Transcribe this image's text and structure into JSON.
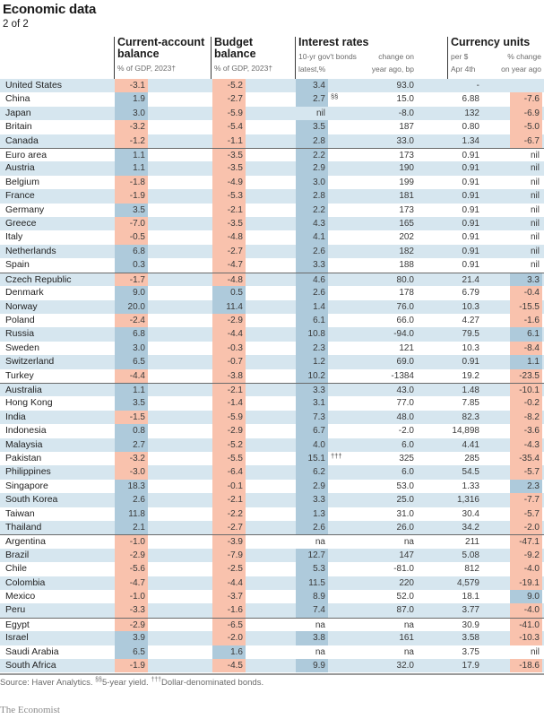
{
  "title": "Economic data",
  "subtitle": "2 of 2",
  "columns": {
    "current_account": {
      "title1": "Current-account",
      "title2": "balance",
      "sub": "% of GDP, 2023†"
    },
    "budget": {
      "title1": "Budget",
      "title2": "balance",
      "sub": "% of GDP, 2023†"
    },
    "interest": {
      "title": "Interest rates",
      "sub1a": "10-yr gov't bonds",
      "sub1b": "latest,%",
      "sub2a": "change on",
      "sub2b": "year ago, bp"
    },
    "currency": {
      "title": "Currency units",
      "sub1a": "per $",
      "sub1b": "Apr 4th",
      "sub2a": "% change",
      "sub2b": "on year ago"
    }
  },
  "colors": {
    "negative": "#f9c2ad",
    "positive": "#aecadb",
    "stripe": "#d6e6ef"
  },
  "rows": [
    {
      "country": "United States",
      "ca": "-3.1",
      "bb": "-5.2",
      "ir": "3.4",
      "fn": "",
      "irc": "93.0",
      "cu": "-",
      "pc": "",
      "sep": false
    },
    {
      "country": "China",
      "ca": "1.9",
      "bb": "-2.7",
      "ir": "2.7",
      "fn": "§§",
      "irc": "15.0",
      "cu": "6.88",
      "pc": "-7.6",
      "sep": false
    },
    {
      "country": "Japan",
      "ca": "3.0",
      "bb": "-5.9",
      "ir": "nil",
      "fn": "",
      "irc": "-8.0",
      "cu": "132",
      "pc": "-6.9",
      "sep": false
    },
    {
      "country": "Britain",
      "ca": "-3.2",
      "bb": "-5.4",
      "ir": "3.5",
      "fn": "",
      "irc": "187",
      "cu": "0.80",
      "pc": "-5.0",
      "sep": false
    },
    {
      "country": "Canada",
      "ca": "-1.2",
      "bb": "-1.1",
      "ir": "2.8",
      "fn": "",
      "irc": "33.0",
      "cu": "1.34",
      "pc": "-6.7",
      "sep": false
    },
    {
      "country": "Euro area",
      "ca": "1.1",
      "bb": "-3.5",
      "ir": "2.2",
      "fn": "",
      "irc": "173",
      "cu": "0.91",
      "pc": "nil",
      "sep": true
    },
    {
      "country": "Austria",
      "ca": "1.1",
      "bb": "-3.5",
      "ir": "2.9",
      "fn": "",
      "irc": "190",
      "cu": "0.91",
      "pc": "nil",
      "sep": false
    },
    {
      "country": "Belgium",
      "ca": "-1.8",
      "bb": "-4.9",
      "ir": "3.0",
      "fn": "",
      "irc": "199",
      "cu": "0.91",
      "pc": "nil",
      "sep": false
    },
    {
      "country": "France",
      "ca": "-1.9",
      "bb": "-5.3",
      "ir": "2.8",
      "fn": "",
      "irc": "181",
      "cu": "0.91",
      "pc": "nil",
      "sep": false
    },
    {
      "country": "Germany",
      "ca": "3.5",
      "bb": "-2.1",
      "ir": "2.2",
      "fn": "",
      "irc": "173",
      "cu": "0.91",
      "pc": "nil",
      "sep": false
    },
    {
      "country": "Greece",
      "ca": "-7.0",
      "bb": "-3.5",
      "ir": "4.3",
      "fn": "",
      "irc": "165",
      "cu": "0.91",
      "pc": "nil",
      "sep": false
    },
    {
      "country": "Italy",
      "ca": "-0.5",
      "bb": "-4.8",
      "ir": "4.1",
      "fn": "",
      "irc": "202",
      "cu": "0.91",
      "pc": "nil",
      "sep": false
    },
    {
      "country": "Netherlands",
      "ca": "6.8",
      "bb": "-2.7",
      "ir": "2.6",
      "fn": "",
      "irc": "182",
      "cu": "0.91",
      "pc": "nil",
      "sep": false
    },
    {
      "country": "Spain",
      "ca": "0.3",
      "bb": "-4.7",
      "ir": "3.3",
      "fn": "",
      "irc": "188",
      "cu": "0.91",
      "pc": "nil",
      "sep": false
    },
    {
      "country": "Czech Republic",
      "ca": "-1.7",
      "bb": "-4.8",
      "ir": "4.6",
      "fn": "",
      "irc": "80.0",
      "cu": "21.4",
      "pc": "3.3",
      "sep": true
    },
    {
      "country": "Denmark",
      "ca": "9.0",
      "bb": "0.5",
      "ir": "2.6",
      "fn": "",
      "irc": "178",
      "cu": "6.79",
      "pc": "-0.4",
      "sep": false
    },
    {
      "country": "Norway",
      "ca": "20.0",
      "bb": "11.4",
      "ir": "1.4",
      "fn": "",
      "irc": "76.0",
      "cu": "10.3",
      "pc": "-15.5",
      "sep": false
    },
    {
      "country": "Poland",
      "ca": "-2.4",
      "bb": "-2.9",
      "ir": "6.1",
      "fn": "",
      "irc": "66.0",
      "cu": "4.27",
      "pc": "-1.6",
      "sep": false
    },
    {
      "country": "Russia",
      "ca": "6.8",
      "bb": "-4.4",
      "ir": "10.8",
      "fn": "",
      "irc": "-94.0",
      "cu": "79.5",
      "pc": "6.1",
      "sep": false
    },
    {
      "country": "Sweden",
      "ca": "3.0",
      "bb": "-0.3",
      "ir": "2.3",
      "fn": "",
      "irc": "121",
      "cu": "10.3",
      "pc": "-8.4",
      "sep": false
    },
    {
      "country": "Switzerland",
      "ca": "6.5",
      "bb": "-0.7",
      "ir": "1.2",
      "fn": "",
      "irc": "69.0",
      "cu": "0.91",
      "pc": "1.1",
      "sep": false
    },
    {
      "country": "Turkey",
      "ca": "-4.4",
      "bb": "-3.8",
      "ir": "10.2",
      "fn": "",
      "irc": "-1384",
      "cu": "19.2",
      "pc": "-23.5",
      "sep": false
    },
    {
      "country": "Australia",
      "ca": "1.1",
      "bb": "-2.1",
      "ir": "3.3",
      "fn": "",
      "irc": "43.0",
      "cu": "1.48",
      "pc": "-10.1",
      "sep": true
    },
    {
      "country": "Hong Kong",
      "ca": "3.5",
      "bb": "-1.4",
      "ir": "3.1",
      "fn": "",
      "irc": "77.0",
      "cu": "7.85",
      "pc": "-0.2",
      "sep": false
    },
    {
      "country": "India",
      "ca": "-1.5",
      "bb": "-5.9",
      "ir": "7.3",
      "fn": "",
      "irc": "48.0",
      "cu": "82.3",
      "pc": "-8.2",
      "sep": false
    },
    {
      "country": "Indonesia",
      "ca": "0.8",
      "bb": "-2.9",
      "ir": "6.7",
      "fn": "",
      "irc": "-2.0",
      "cu": "14,898",
      "pc": "-3.6",
      "sep": false
    },
    {
      "country": "Malaysia",
      "ca": "2.7",
      "bb": "-5.2",
      "ir": "4.0",
      "fn": "",
      "irc": "6.0",
      "cu": "4.41",
      "pc": "-4.3",
      "sep": false
    },
    {
      "country": "Pakistan",
      "ca": "-3.2",
      "bb": "-5.5",
      "ir": "15.1",
      "fn": "†††",
      "irc": "325",
      "cu": "285",
      "pc": "-35.4",
      "sep": false
    },
    {
      "country": "Philippines",
      "ca": "-3.0",
      "bb": "-6.4",
      "ir": "6.2",
      "fn": "",
      "irc": "6.0",
      "cu": "54.5",
      "pc": "-5.7",
      "sep": false
    },
    {
      "country": "Singapore",
      "ca": "18.3",
      "bb": "-0.1",
      "ir": "2.9",
      "fn": "",
      "irc": "53.0",
      "cu": "1.33",
      "pc": "2.3",
      "sep": false
    },
    {
      "country": "South Korea",
      "ca": "2.6",
      "bb": "-2.1",
      "ir": "3.3",
      "fn": "",
      "irc": "25.0",
      "cu": "1,316",
      "pc": "-7.7",
      "sep": false
    },
    {
      "country": "Taiwan",
      "ca": "11.8",
      "bb": "-2.2",
      "ir": "1.3",
      "fn": "",
      "irc": "31.0",
      "cu": "30.4",
      "pc": "-5.7",
      "sep": false
    },
    {
      "country": "Thailand",
      "ca": "2.1",
      "bb": "-2.7",
      "ir": "2.6",
      "fn": "",
      "irc": "26.0",
      "cu": "34.2",
      "pc": "-2.0",
      "sep": false
    },
    {
      "country": "Argentina",
      "ca": "-1.0",
      "bb": "-3.9",
      "ir": "na",
      "fn": "",
      "irc": "na",
      "cu": "211",
      "pc": "-47.1",
      "sep": true
    },
    {
      "country": "Brazil",
      "ca": "-2.9",
      "bb": "-7.9",
      "ir": "12.7",
      "fn": "",
      "irc": "147",
      "cu": "5.08",
      "pc": "-9.2",
      "sep": false
    },
    {
      "country": "Chile",
      "ca": "-5.6",
      "bb": "-2.5",
      "ir": "5.3",
      "fn": "",
      "irc": "-81.0",
      "cu": "812",
      "pc": "-4.0",
      "sep": false
    },
    {
      "country": "Colombia",
      "ca": "-4.7",
      "bb": "-4.4",
      "ir": "11.5",
      "fn": "",
      "irc": "220",
      "cu": "4,579",
      "pc": "-19.1",
      "sep": false
    },
    {
      "country": "Mexico",
      "ca": "-1.0",
      "bb": "-3.7",
      "ir": "8.9",
      "fn": "",
      "irc": "52.0",
      "cu": "18.1",
      "pc": "9.0",
      "sep": false
    },
    {
      "country": "Peru",
      "ca": "-3.3",
      "bb": "-1.6",
      "ir": "7.4",
      "fn": "",
      "irc": "87.0",
      "cu": "3.77",
      "pc": "-4.0",
      "sep": false
    },
    {
      "country": "Egypt",
      "ca": "-2.9",
      "bb": "-6.5",
      "ir": "na",
      "fn": "",
      "irc": "na",
      "cu": "30.9",
      "pc": "-41.0",
      "sep": true
    },
    {
      "country": "Israel",
      "ca": "3.9",
      "bb": "-2.0",
      "ir": "3.8",
      "fn": "",
      "irc": "161",
      "cu": "3.58",
      "pc": "-10.3",
      "sep": false
    },
    {
      "country": "Saudi Arabia",
      "ca": "6.5",
      "bb": "1.6",
      "ir": "na",
      "fn": "",
      "irc": "na",
      "cu": "3.75",
      "pc": "nil",
      "sep": false
    },
    {
      "country": "South Africa",
      "ca": "-1.9",
      "bb": "-4.5",
      "ir": "9.9",
      "fn": "",
      "irc": "32.0",
      "cu": "17.9",
      "pc": "-18.6",
      "sep": false
    }
  ],
  "footer": {
    "source_a": "Source: Haver Analytics. ",
    "mark1": "§§",
    "source_b": "5-year yield. ",
    "mark2": "†††",
    "source_c": "Dollar-denominated bonds.",
    "logo": "The Economist"
  }
}
